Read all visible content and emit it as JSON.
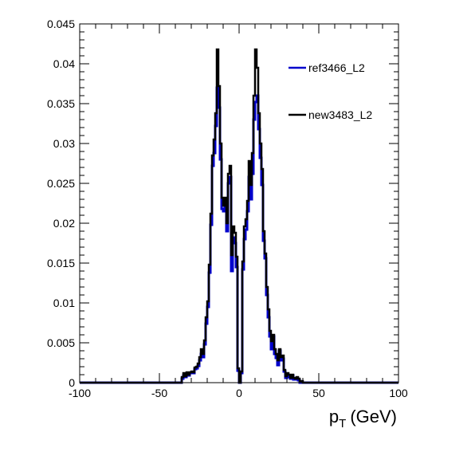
{
  "chart_data": {
    "type": "line",
    "title": "",
    "xlabel": "p",
    "xlabel_sub": "T",
    "xlabel_unit": "(GeV)",
    "ylabel": "",
    "xlim": [
      -100,
      100
    ],
    "ylim": [
      0,
      0.045
    ],
    "x_ticks": [
      -100,
      -50,
      0,
      50,
      100
    ],
    "x_tick_labels": [
      "-100",
      "-50",
      "0",
      "50",
      "100"
    ],
    "y_ticks": [
      0,
      0.005,
      0.01,
      0.015,
      0.02,
      0.025,
      0.03,
      0.035,
      0.04,
      0.045
    ],
    "y_tick_labels": [
      "0",
      "0.005",
      "0.01",
      "0.015",
      "0.02",
      "0.025",
      "0.03",
      "0.035",
      "0.04",
      "0.045"
    ],
    "grid": false,
    "legend_position": "top-right",
    "colors": {
      "ref": "#0000cc",
      "new": "#000000"
    },
    "series": [
      {
        "name": "ref3466_L2",
        "color": "#0000cc",
        "x": [
          -100,
          -40,
          -38,
          -36,
          -35,
          -34,
          -33,
          -32,
          -31,
          -30,
          -29,
          -28,
          -27,
          -26,
          -25,
          -24,
          -23,
          -22,
          -21,
          -20,
          -19,
          -18,
          -17,
          -16,
          -15,
          -14,
          -13,
          -12,
          -11,
          -10,
          -9,
          -8,
          -7,
          -6,
          -5,
          -4,
          -3,
          -2,
          -1,
          0,
          1,
          2,
          3,
          4,
          5,
          6,
          7,
          8,
          9,
          10,
          11,
          12,
          13,
          14,
          15,
          16,
          17,
          18,
          19,
          20,
          21,
          22,
          23,
          24,
          25,
          26,
          27,
          28,
          29,
          30,
          31,
          32,
          33,
          34,
          35,
          36,
          37,
          38,
          40,
          100
        ],
        "y": [
          0,
          0,
          0,
          0.0005,
          0.0009,
          0.0007,
          0.0011,
          0.0009,
          0.0012,
          0.0013,
          0.0012,
          0.0017,
          0.0018,
          0.0021,
          0.0028,
          0.0036,
          0.0032,
          0.0048,
          0.0074,
          0.0095,
          0.0138,
          0.0198,
          0.0272,
          0.0288,
          0.0322,
          0.037,
          0.0345,
          0.028,
          0.0218,
          0.0215,
          0.022,
          0.019,
          0.025,
          0.0258,
          0.014,
          0.0182,
          0.0175,
          0.0145,
          0.0015,
          0.0,
          0.0012,
          0.0142,
          0.018,
          0.0192,
          0.0215,
          0.0258,
          0.023,
          0.0262,
          0.033,
          0.0352,
          0.036,
          0.0318,
          0.0282,
          0.0248,
          0.0178,
          0.0156,
          0.011,
          0.0082,
          0.0058,
          0.0042,
          0.0058,
          0.0036,
          0.0031,
          0.0022,
          0.004,
          0.0028,
          0.003,
          0.0014,
          0.0006,
          0.001,
          0.0007,
          0.0005,
          0.0009,
          0.0004,
          0.0004,
          0.0005,
          0.0003,
          0,
          0,
          0
        ]
      },
      {
        "name": "new3483_L2",
        "color": "#000000",
        "x": [
          -100,
          -40,
          -38,
          -36,
          -35,
          -34,
          -33,
          -32,
          -31,
          -30,
          -29,
          -28,
          -27,
          -26,
          -25,
          -24,
          -23,
          -22,
          -21,
          -20,
          -19,
          -18,
          -17,
          -16,
          -15,
          -14,
          -13,
          -12,
          -11,
          -10,
          -9,
          -8,
          -7,
          -6,
          -5,
          -4,
          -3,
          -2,
          -1,
          0,
          1,
          2,
          3,
          4,
          5,
          6,
          7,
          8,
          9,
          10,
          11,
          12,
          13,
          14,
          15,
          16,
          17,
          18,
          19,
          20,
          21,
          22,
          23,
          24,
          25,
          26,
          27,
          28,
          29,
          30,
          31,
          32,
          33,
          34,
          35,
          36,
          37,
          38,
          40,
          100
        ],
        "y": [
          0,
          0,
          0,
          0.0007,
          0.0012,
          0.0008,
          0.0013,
          0.001,
          0.0013,
          0.0014,
          0.0013,
          0.0019,
          0.002,
          0.0024,
          0.0032,
          0.0042,
          0.0036,
          0.0053,
          0.0082,
          0.0102,
          0.0148,
          0.0212,
          0.0285,
          0.0305,
          0.0338,
          0.0418,
          0.0372,
          0.03,
          0.0232,
          0.0222,
          0.0232,
          0.02,
          0.0262,
          0.0272,
          0.016,
          0.0196,
          0.0188,
          0.0158,
          0.0018,
          0.0,
          0.0014,
          0.0152,
          0.0196,
          0.0205,
          0.0228,
          0.0278,
          0.0248,
          0.0288,
          0.036,
          0.0418,
          0.0395,
          0.0338,
          0.03,
          0.0268,
          0.019,
          0.0162,
          0.012,
          0.0092,
          0.0065,
          0.0052,
          0.006,
          0.0042,
          0.0036,
          0.0028,
          0.0042,
          0.0032,
          0.0034,
          0.0016,
          0.0008,
          0.0012,
          0.001,
          0.0006,
          0.001,
          0.0006,
          0.0005,
          0.0007,
          0.0005,
          0.0002,
          0,
          0
        ]
      }
    ]
  }
}
